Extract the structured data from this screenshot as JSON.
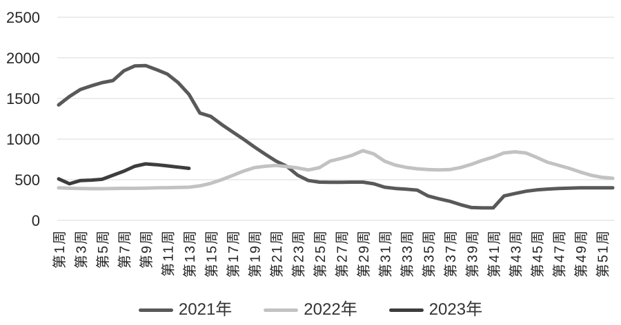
{
  "chart_data": {
    "type": "line",
    "title": "",
    "xlabel": "",
    "ylabel": "",
    "weeks": 52,
    "x_tick_labels": [
      "第1周",
      "第3周",
      "第5周",
      "第7周",
      "第9周",
      "第11周",
      "第13周",
      "第15周",
      "第17周",
      "第19周",
      "第21周",
      "第23周",
      "第25周",
      "第27周",
      "第29周",
      "第31周",
      "第33周",
      "第35周",
      "第37周",
      "第39周",
      "第41周",
      "第43周",
      "第45周",
      "第47周",
      "第49周",
      "第51周"
    ],
    "yticks": [
      0,
      500,
      1000,
      1500,
      2000,
      2500
    ],
    "ylim": [
      0,
      2500
    ],
    "grid": true,
    "legend_position": "bottom",
    "gridline_color": "#d9d9d9",
    "axis_text_color": "#262626",
    "series": [
      {
        "name": "2021年",
        "color": "#595959",
        "values": [
          1420,
          1525,
          1610,
          1655,
          1695,
          1720,
          1840,
          1900,
          1905,
          1855,
          1800,
          1695,
          1550,
          1320,
          1280,
          1180,
          1090,
          1000,
          905,
          815,
          730,
          665,
          555,
          490,
          470,
          468,
          468,
          470,
          470,
          450,
          408,
          392,
          383,
          372,
          300,
          265,
          235,
          192,
          158,
          153,
          153,
          300,
          330,
          358,
          375,
          385,
          392,
          396,
          400,
          400,
          400,
          400
        ]
      },
      {
        "name": "2022年",
        "color": "#c2c2c2",
        "values": [
          400,
          395,
          392,
          390,
          390,
          392,
          394,
          394,
          396,
          400,
          402,
          405,
          408,
          425,
          455,
          500,
          552,
          605,
          648,
          665,
          675,
          662,
          645,
          620,
          648,
          730,
          762,
          800,
          858,
          818,
          728,
          680,
          652,
          635,
          625,
          620,
          625,
          650,
          690,
          738,
          778,
          830,
          843,
          830,
          775,
          715,
          678,
          640,
          595,
          555,
          530,
          518
        ]
      },
      {
        "name": "2023年",
        "color": "#3d3d3d",
        "values": [
          510,
          450,
          490,
          495,
          505,
          555,
          605,
          665,
          695,
          685,
          670,
          655,
          640
        ]
      }
    ]
  },
  "legend": {
    "items": [
      {
        "label": "2021年"
      },
      {
        "label": "2022年"
      },
      {
        "label": "2023年"
      }
    ]
  }
}
